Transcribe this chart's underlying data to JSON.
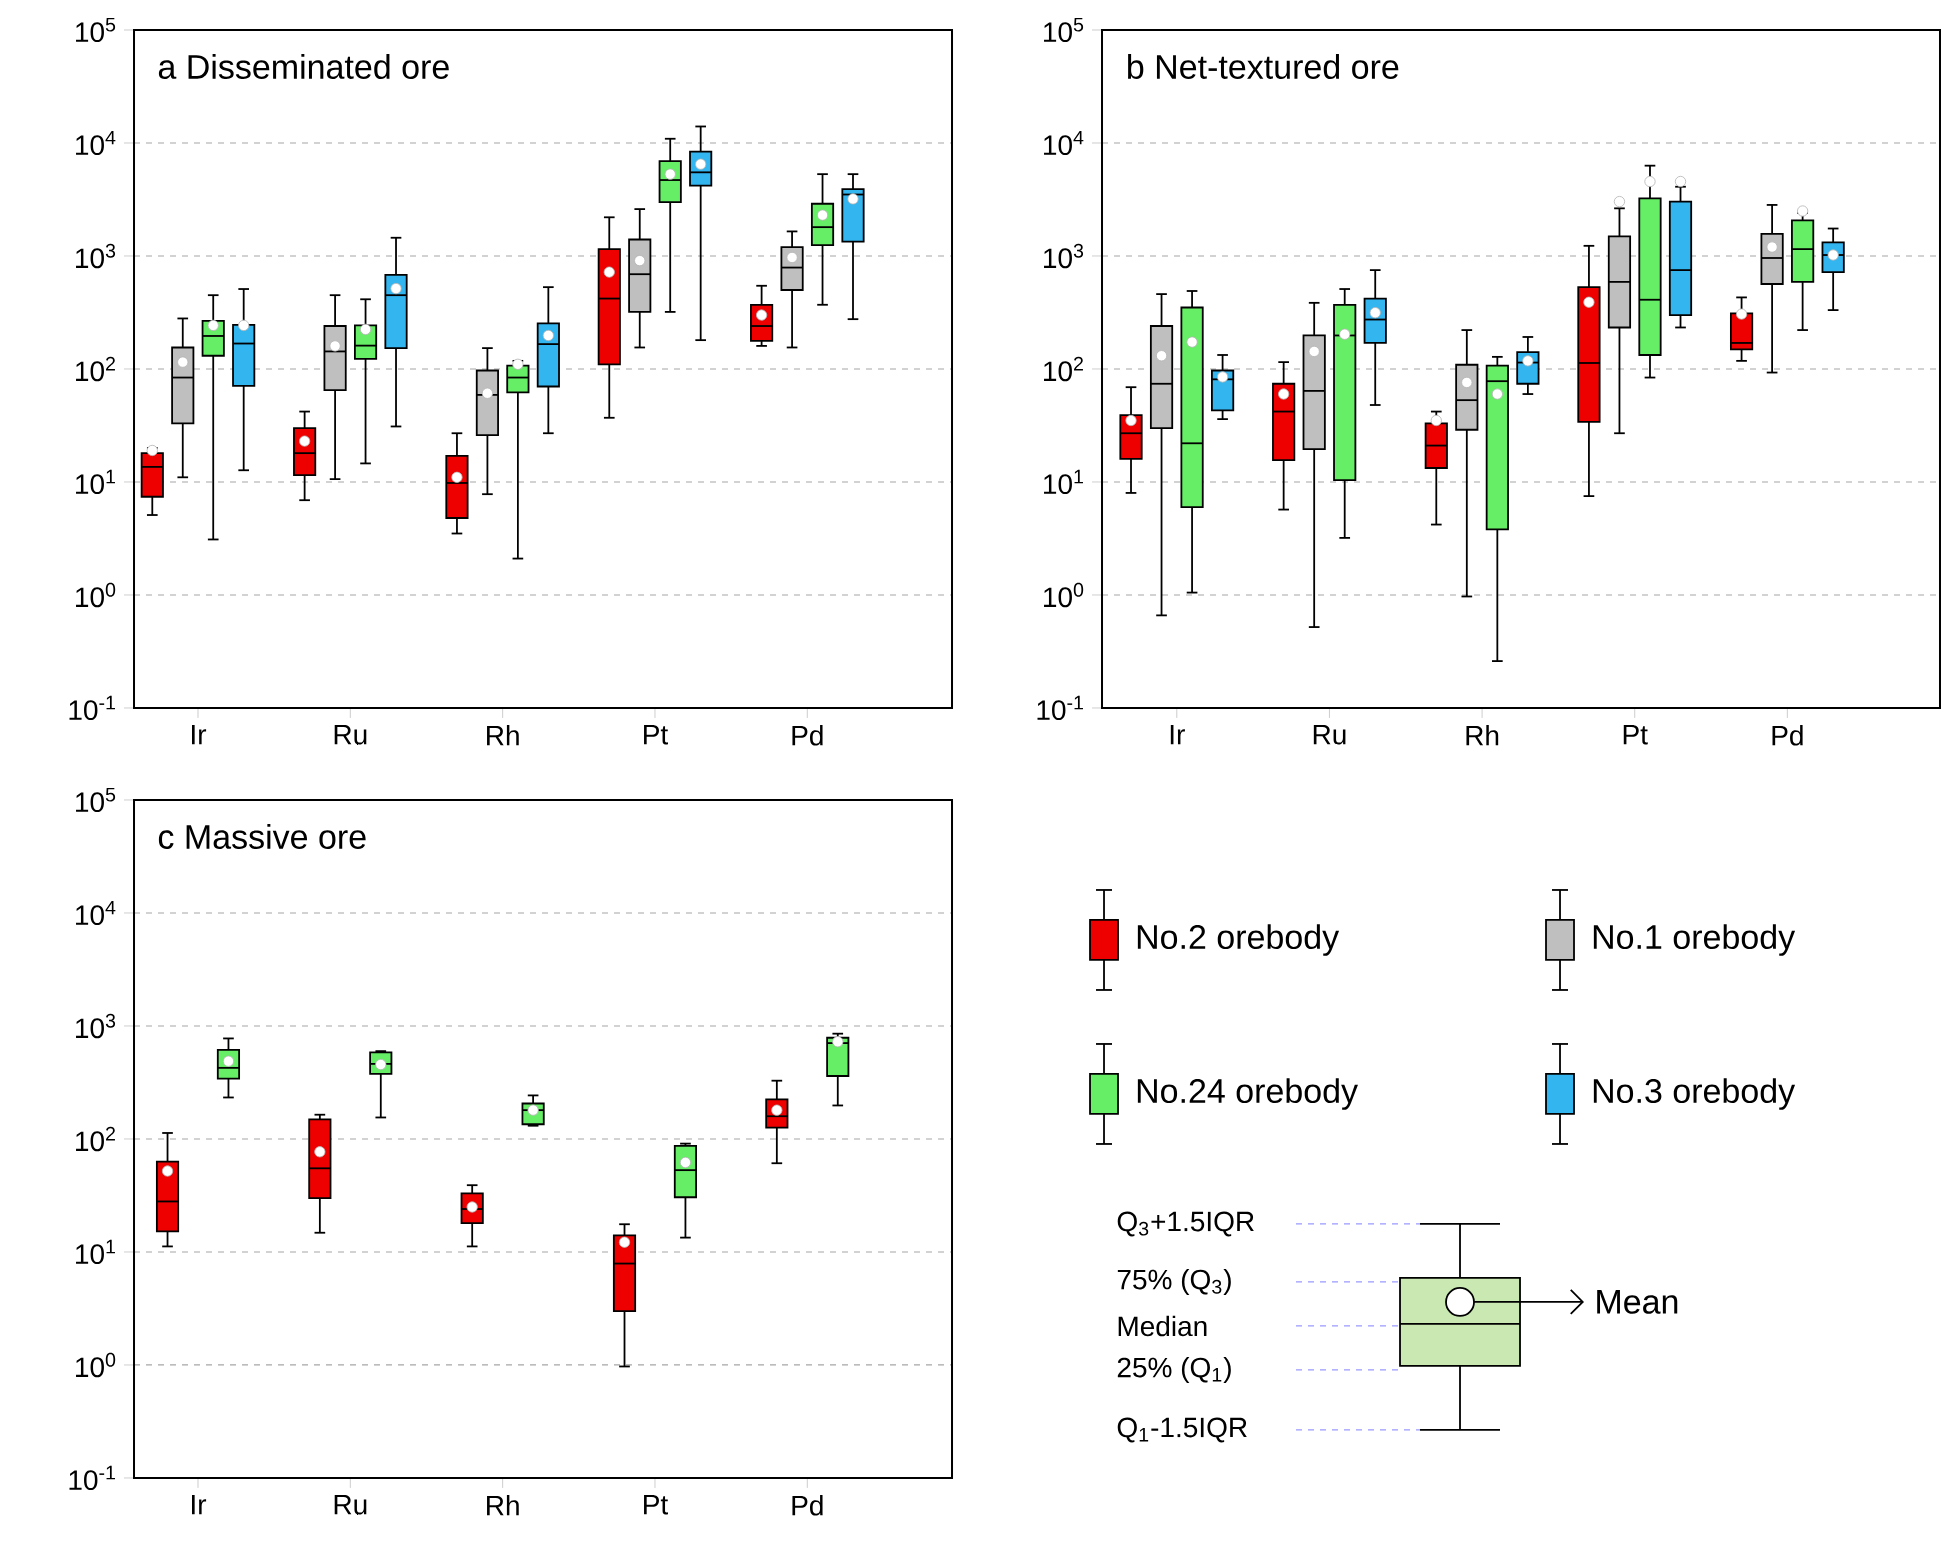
{
  "chart_data": [
    {
      "type": "box",
      "title": "a Disseminated ore",
      "categories": [
        "Ir",
        "Ru",
        "Rh",
        "Pt",
        "Pd"
      ],
      "ylim": [
        0.1,
        100000
      ],
      "yticks": [
        {
          "value": 0.1,
          "label": "10$^{-1}$"
        },
        {
          "value": 1,
          "label": "10$^{0}$"
        },
        {
          "value": 10,
          "label": "10$^{1}$"
        },
        {
          "value": 100,
          "label": "10$^{2}$"
        },
        {
          "value": 1000,
          "label": "10$^{3}$"
        },
        {
          "value": 10000,
          "label": "10$^{4}$"
        },
        {
          "value": 100000,
          "label": "10$^{5}$"
        }
      ],
      "log": true,
      "grid": "y",
      "series": [
        {
          "color": "#ee0000",
          "boxes": [
            {
              "low": 5.1,
              "q1": 7.4,
              "median": 13.6,
              "q3": 18,
              "high": 20,
              "mean": 19
            },
            {
              "low": 6.9,
              "q1": 11.5,
              "median": 18,
              "q3": 30,
              "high": 42,
              "mean": 23
            },
            {
              "low": 3.5,
              "q1": 4.8,
              "median": 9.8,
              "q3": 17,
              "high": 27,
              "mean": 11
            },
            {
              "low": 37,
              "q1": 110,
              "median": 420,
              "q3": 1150,
              "high": 2200,
              "mean": 720
            },
            {
              "low": 160,
              "q1": 177,
              "median": 240,
              "q3": 370,
              "high": 545,
              "mean": 300
            }
          ]
        },
        {
          "color": "#bfbfbf",
          "boxes": [
            {
              "low": 11,
              "q1": 33,
              "median": 84,
              "q3": 155,
              "high": 280,
              "mean": 115
            },
            {
              "low": 10.6,
              "q1": 65,
              "median": 143,
              "q3": 240,
              "high": 450,
              "mean": 160
            },
            {
              "low": 7.8,
              "q1": 26,
              "median": 59,
              "q3": 97,
              "high": 153,
              "mean": 61
            },
            {
              "low": 155,
              "q1": 320,
              "median": 690,
              "q3": 1400,
              "high": 2600,
              "mean": 910
            },
            {
              "low": 155,
              "q1": 500,
              "median": 790,
              "q3": 1200,
              "high": 1650,
              "mean": 970
            }
          ]
        },
        {
          "color": "#66ee66",
          "boxes": [
            {
              "low": 3.1,
              "q1": 131,
              "median": 196,
              "q3": 267,
              "high": 450,
              "mean": 243
            },
            {
              "low": 14.6,
              "q1": 123,
              "median": 161,
              "q3": 243,
              "high": 414,
              "mean": 224
            },
            {
              "low": 2.1,
              "q1": 62,
              "median": 84,
              "q3": 107,
              "high": 118,
              "mean": 110
            },
            {
              "low": 320,
              "q1": 3000,
              "median": 4700,
              "q3": 6900,
              "high": 10900,
              "mean": 5300
            },
            {
              "low": 370,
              "q1": 1250,
              "median": 1800,
              "q3": 2900,
              "high": 5300,
              "mean": 2300
            }
          ]
        },
        {
          "color": "#33b5f0",
          "boxes": [
            {
              "low": 12.7,
              "q1": 71,
              "median": 168,
              "q3": 246,
              "high": 510,
              "mean": 243
            },
            {
              "low": 31,
              "q1": 153,
              "median": 450,
              "q3": 680,
              "high": 1450,
              "mean": 515
            },
            {
              "low": 27,
              "q1": 70,
              "median": 166,
              "q3": 253,
              "high": 530,
              "mean": 198
            },
            {
              "low": 180,
              "q1": 4200,
              "median": 5500,
              "q3": 8400,
              "high": 14000,
              "mean": 6500
            },
            {
              "low": 276,
              "q1": 1340,
              "median": 3500,
              "q3": 3900,
              "high": 5300,
              "mean": 3200
            }
          ]
        }
      ]
    },
    {
      "type": "box",
      "title": "b Net-textured ore",
      "categories": [
        "Ir",
        "Ru",
        "Rh",
        "Pt",
        "Pd"
      ],
      "ylim": [
        0.1,
        100000
      ],
      "yticks": [
        {
          "value": 0.1,
          "label": "10$^{-1}$"
        },
        {
          "value": 1,
          "label": "10$^{0}$"
        },
        {
          "value": 10,
          "label": "10$^{1}$"
        },
        {
          "value": 100,
          "label": "10$^{2}$"
        },
        {
          "value": 1000,
          "label": "10$^{3}$"
        },
        {
          "value": 10000,
          "label": "10$^{4}$"
        },
        {
          "value": 100000,
          "label": "10$^{5}$"
        }
      ],
      "log": true,
      "grid": "y",
      "legend": "bottom",
      "series": [
        {
          "name": "No.2 orebody",
          "color": "#ee0000",
          "boxes": [
            {
              "low": 8,
              "q1": 16,
              "median": 27,
              "q3": 39,
              "high": 69,
              "mean": 35
            },
            {
              "low": 5.7,
              "q1": 15.6,
              "median": 42,
              "q3": 74,
              "high": 115,
              "mean": 60
            },
            {
              "low": 4.2,
              "q1": 13.3,
              "median": 21,
              "q3": 33,
              "high": 42,
              "mean": 35
            },
            {
              "low": 7.5,
              "q1": 34,
              "median": 113,
              "q3": 530,
              "high": 1230,
              "mean": 390
            },
            {
              "low": 118,
              "q1": 149,
              "median": 170,
              "q3": 310,
              "high": 430,
              "mean": 306
            }
          ]
        },
        {
          "name": "No.1 orebody",
          "color": "#bfbfbf",
          "boxes": [
            {
              "low": 0.66,
              "q1": 30,
              "median": 74,
              "q3": 240,
              "high": 460,
              "mean": 131
            },
            {
              "low": 0.52,
              "q1": 19.5,
              "median": 64,
              "q3": 198,
              "high": 385,
              "mean": 143
            },
            {
              "low": 0.97,
              "q1": 29,
              "median": 53,
              "q3": 109,
              "high": 221,
              "mean": 76
            },
            {
              "low": 27,
              "q1": 233,
              "median": 590,
              "q3": 1490,
              "high": 2640,
              "mean": 3030
            },
            {
              "low": 93,
              "q1": 565,
              "median": 960,
              "q3": 1570,
              "high": 2830,
              "mean": 1200
            }
          ]
        },
        {
          "name": "No.24 orebody",
          "color": "#66ee66",
          "boxes": [
            {
              "low": 1.05,
              "q1": 6,
              "median": 22,
              "q3": 350,
              "high": 490,
              "mean": 173
            },
            {
              "low": 3.2,
              "q1": 10.4,
              "median": 198,
              "q3": 370,
              "high": 510,
              "mean": 203
            },
            {
              "low": 0.26,
              "q1": 3.8,
              "median": 78,
              "q3": 107,
              "high": 128,
              "mean": 60
            },
            {
              "low": 84,
              "q1": 133,
              "median": 410,
              "q3": 3240,
              "high": 6300,
              "mean": 4560
            },
            {
              "low": 221,
              "q1": 590,
              "median": 1150,
              "q3": 2070,
              "high": 2400,
              "mean": 2500
            }
          ]
        },
        {
          "name": "No.3 orebody",
          "color": "#33b5f0",
          "boxes": [
            {
              "low": 36,
              "q1": 43,
              "median": 81,
              "q3": 97,
              "high": 133,
              "mean": 85
            },
            {
              "low": 48,
              "q1": 170,
              "median": 274,
              "q3": 420,
              "high": 750,
              "mean": 315
            },
            {
              "low": 60,
              "q1": 74,
              "median": 114,
              "q3": 141,
              "high": 192,
              "mean": 118
            },
            {
              "low": 233,
              "q1": 300,
              "median": 750,
              "q3": 3030,
              "high": 4100,
              "mean": 4560
            },
            {
              "low": 332,
              "q1": 720,
              "median": 1020,
              "q3": 1320,
              "high": 1750,
              "mean": 1020
            }
          ]
        }
      ]
    },
    {
      "type": "box",
      "title": "c Massive ore",
      "categories": [
        "Ir",
        "Ru",
        "Rh",
        "Pt",
        "Pd"
      ],
      "ylim": [
        0.1,
        100000
      ],
      "yticks": [
        {
          "value": 0.1,
          "label": "10$^{-1}$"
        },
        {
          "value": 1,
          "label": "10$^{0}$"
        },
        {
          "value": 10,
          "label": "10$^{1}$"
        },
        {
          "value": 100,
          "label": "10$^{2}$"
        },
        {
          "value": 1000,
          "label": "10$^{3}$"
        },
        {
          "value": 10000,
          "label": "10$^{4}$"
        },
        {
          "value": 100000,
          "label": "10$^{5}$"
        }
      ],
      "log": true,
      "grid": "y",
      "series": [
        {
          "color": "#ee0000",
          "boxes": [
            {
              "low": 11.2,
              "q1": 15.2,
              "median": 28,
              "q3": 63,
              "high": 113,
              "mean": 52
            },
            {
              "low": 14.8,
              "q1": 30,
              "median": 55,
              "q3": 149,
              "high": 164,
              "mean": 77
            },
            {
              "low": 11.2,
              "q1": 18,
              "median": 24,
              "q3": 33,
              "high": 39,
              "mean": 25
            },
            {
              "low": 0.97,
              "q1": 3,
              "median": 7.9,
              "q3": 14,
              "high": 17.6,
              "mean": 12.2
            },
            {
              "low": 61,
              "q1": 126,
              "median": 159,
              "q3": 224,
              "high": 328,
              "mean": 180
            }
          ]
        },
        {
          "color": "#66ee66",
          "boxes": [
            {
              "low": 233,
              "q1": 342,
              "median": 426,
              "q3": 615,
              "high": 776,
              "mean": 488
            },
            {
              "low": 155,
              "q1": 377,
              "median": 462,
              "q3": 583,
              "high": 599,
              "mean": 456
            },
            {
              "low": 131,
              "q1": 135,
              "median": 180,
              "q3": 206,
              "high": 243,
              "mean": 180
            },
            {
              "low": 13.4,
              "q1": 30.5,
              "median": 53,
              "q3": 87,
              "high": 91,
              "mean": 62
            },
            {
              "low": 198,
              "q1": 361,
              "median": 706,
              "q3": 787,
              "high": 855,
              "mean": 726
            }
          ]
        }
      ]
    },
    {
      "type": "other",
      "annotations": [
        "Q$_{3}$+1.5IQR",
        "75% (Q$_{3}$)",
        "Median",
        "25% (Q$_{1}$)",
        "Q$_{1}$-1.5IQR",
        "Mean"
      ]
    }
  ]
}
